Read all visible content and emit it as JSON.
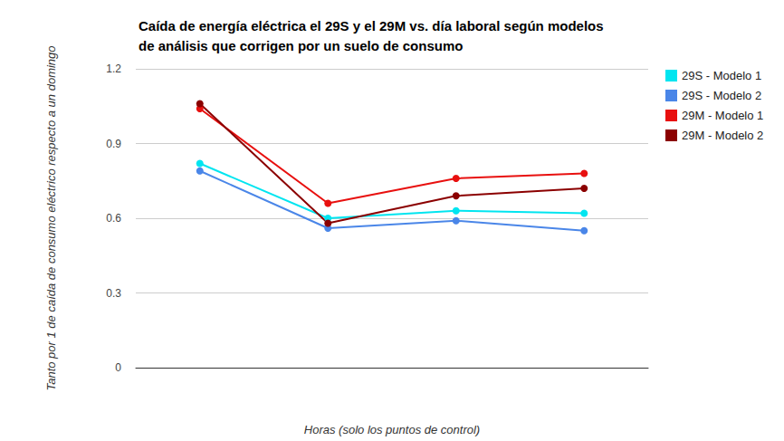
{
  "chart_data": {
    "type": "line",
    "title": "Caída de energía eléctrica el 29S y el 29M vs. día laboral según modelos de análisis que corrigen por un suelo de consumo",
    "x_label": "Horas (solo los puntos de control)",
    "y_label": "Tanto por 1 de caída de consumo eléctrico respecto a un domingo",
    "categories": [
      null,
      null,
      null,
      null
    ],
    "series": [
      {
        "name": "29S - Modelo 1",
        "color": "#00e5f0",
        "values": [
          0.82,
          0.6,
          0.63,
          0.62
        ]
      },
      {
        "name": "29S - Modelo 2",
        "color": "#4a86e8",
        "values": [
          0.79,
          0.56,
          0.59,
          0.55
        ]
      },
      {
        "name": "29M - Modelo 1",
        "color": "#e8100f",
        "values": [
          1.04,
          0.66,
          0.76,
          0.78
        ]
      },
      {
        "name": "29M - Modelo 2",
        "color": "#8b0000",
        "values": [
          1.06,
          0.58,
          0.69,
          0.72
        ]
      }
    ],
    "ylim": [
      0,
      1.2
    ],
    "yticks": [
      0,
      0.3,
      0.6,
      0.9,
      1.2
    ],
    "grid": true,
    "legend": "right",
    "marker": "circle"
  }
}
